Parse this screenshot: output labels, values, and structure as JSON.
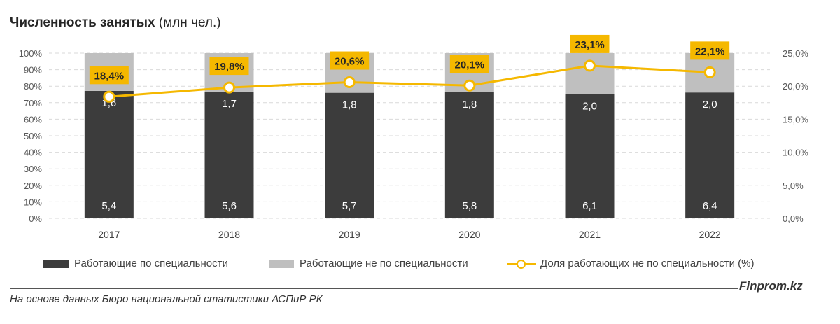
{
  "title": {
    "bold": "Численность занятых",
    "rest": " (млн чел.)"
  },
  "legend": {
    "specialty": "Работающие по специальности",
    "non_specialty": "Работающие не по специальности",
    "share": "Доля работающих не по специальности (%)"
  },
  "footer": {
    "brand": "Finprom.kz",
    "source": "На основе данных Бюро национальной статистики АСПиР РК"
  },
  "colors": {
    "dark_bar": "#3c3c3c",
    "light_bar": "#bfbfbf",
    "line": "#f5b800",
    "label_box": "#f5b800"
  },
  "chart_data": {
    "type": "bar",
    "stacked": true,
    "percent_stacked": true,
    "categories": [
      "2017",
      "2018",
      "2019",
      "2020",
      "2021",
      "2022"
    ],
    "series": [
      {
        "name": "Работающие по специальности",
        "values": [
          5.4,
          5.6,
          5.7,
          5.8,
          6.1,
          6.4
        ],
        "labels": [
          "5,4",
          "5,6",
          "5,7",
          "5,8",
          "6,1",
          "6,4"
        ]
      },
      {
        "name": "Работающие не по специальности",
        "values": [
          1.6,
          1.7,
          1.8,
          1.8,
          2.0,
          2.0
        ],
        "labels": [
          "1,6",
          "1,7",
          "1,8",
          "1,8",
          "2,0",
          "2,0"
        ]
      }
    ],
    "line_series": {
      "name": "Доля работающих не по специальности (%)",
      "values": [
        18.4,
        19.8,
        20.6,
        20.1,
        23.1,
        22.1
      ],
      "labels": [
        "18,4%",
        "19,8%",
        "20,6%",
        "20,1%",
        "23,1%",
        "22,1%"
      ],
      "axis": "right"
    },
    "y_left": {
      "ticks": [
        "0%",
        "10%",
        "20%",
        "30%",
        "40%",
        "50%",
        "60%",
        "70%",
        "80%",
        "90%",
        "100%"
      ],
      "range": [
        0,
        100
      ]
    },
    "y_right": {
      "ticks": [
        "0,0%",
        "5,0%",
        "10,0%",
        "15,0%",
        "20,0%",
        "25,0%"
      ],
      "range": [
        0,
        25
      ]
    },
    "grid": true,
    "legend_position": "bottom"
  }
}
